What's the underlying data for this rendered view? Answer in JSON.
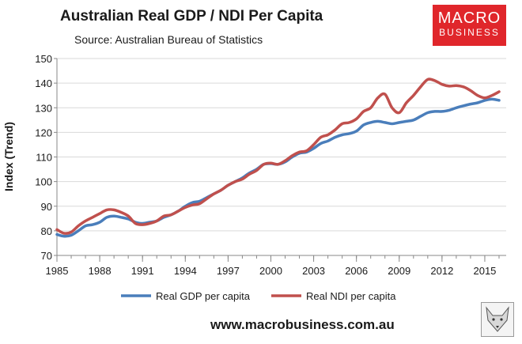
{
  "header": {
    "title": "Australian Real GDP / NDI Per Capita",
    "subtitle": "Source: Australian Bureau of Statistics"
  },
  "logo": {
    "line1": "MACRO",
    "line2": "BUSINESS"
  },
  "footer": {
    "website": "www.macrobusiness.com.au"
  },
  "icons": {
    "fox": "fox-head-logo-icon"
  },
  "chart_data": {
    "type": "line",
    "title": "Australian Real GDP / NDI Per Capita",
    "subtitle": "Source: Australian Bureau of Statistics",
    "xlabel": "",
    "ylabel": "Index (Trend)",
    "xlim": [
      1985,
      2016.5
    ],
    "ylim": [
      70,
      150
    ],
    "xticks": [
      1985,
      1988,
      1991,
      1994,
      1997,
      2000,
      2003,
      2006,
      2009,
      2012,
      2015
    ],
    "yticks": [
      70,
      80,
      90,
      100,
      110,
      120,
      130,
      140,
      150
    ],
    "grid": {
      "horizontal": true,
      "vertical": false
    },
    "legend_position": "bottom",
    "series": [
      {
        "name": "Real GDP per capita",
        "color": "#4a7ebb",
        "points": [
          [
            1985,
            78.5
          ],
          [
            1985.5,
            77.8
          ],
          [
            1986,
            78.2
          ],
          [
            1986.5,
            80
          ],
          [
            1987,
            82
          ],
          [
            1987.5,
            82.5
          ],
          [
            1988,
            83.5
          ],
          [
            1988.5,
            85.5
          ],
          [
            1989,
            86
          ],
          [
            1989.5,
            85.5
          ],
          [
            1990,
            84.8
          ],
          [
            1990.5,
            83.5
          ],
          [
            1991,
            83
          ],
          [
            1991.5,
            83.5
          ],
          [
            1992,
            84
          ],
          [
            1992.5,
            85.5
          ],
          [
            1993,
            86.5
          ],
          [
            1993.5,
            88
          ],
          [
            1994,
            90
          ],
          [
            1994.5,
            91.5
          ],
          [
            1995,
            92
          ],
          [
            1995.5,
            93.5
          ],
          [
            1996,
            95
          ],
          [
            1996.5,
            96.5
          ],
          [
            1997,
            98.5
          ],
          [
            1997.5,
            100
          ],
          [
            1998,
            101.5
          ],
          [
            1998.5,
            103.5
          ],
          [
            1999,
            105
          ],
          [
            1999.5,
            107
          ],
          [
            2000,
            107.3
          ],
          [
            2000.5,
            107
          ],
          [
            2001,
            108
          ],
          [
            2001.5,
            110
          ],
          [
            2002,
            111.5
          ],
          [
            2002.5,
            112
          ],
          [
            2003,
            113.5
          ],
          [
            2003.5,
            115.5
          ],
          [
            2004,
            116.5
          ],
          [
            2004.5,
            118
          ],
          [
            2005,
            119
          ],
          [
            2005.5,
            119.5
          ],
          [
            2006,
            120.5
          ],
          [
            2006.5,
            123
          ],
          [
            2007,
            124
          ],
          [
            2007.5,
            124.5
          ],
          [
            2008,
            124
          ],
          [
            2008.5,
            123.5
          ],
          [
            2009,
            124
          ],
          [
            2009.5,
            124.5
          ],
          [
            2010,
            125
          ],
          [
            2010.5,
            126.5
          ],
          [
            2011,
            128
          ],
          [
            2011.5,
            128.5
          ],
          [
            2012,
            128.5
          ],
          [
            2012.5,
            129
          ],
          [
            2013,
            130
          ],
          [
            2013.5,
            130.8
          ],
          [
            2014,
            131.5
          ],
          [
            2014.5,
            132
          ],
          [
            2015,
            133
          ],
          [
            2015.5,
            133.5
          ],
          [
            2016,
            133
          ]
        ]
      },
      {
        "name": "Real NDI per capita",
        "color": "#c0504d",
        "points": [
          [
            1985,
            80.5
          ],
          [
            1985.5,
            79
          ],
          [
            1986,
            79.5
          ],
          [
            1986.5,
            82
          ],
          [
            1987,
            84
          ],
          [
            1987.5,
            85.5
          ],
          [
            1988,
            87
          ],
          [
            1988.5,
            88.5
          ],
          [
            1989,
            88.5
          ],
          [
            1989.5,
            87.5
          ],
          [
            1990,
            86
          ],
          [
            1990.5,
            83
          ],
          [
            1991,
            82.5
          ],
          [
            1991.5,
            83
          ],
          [
            1992,
            84
          ],
          [
            1992.5,
            86
          ],
          [
            1993,
            86.5
          ],
          [
            1993.5,
            88
          ],
          [
            1994,
            89.5
          ],
          [
            1994.5,
            90.5
          ],
          [
            1995,
            91
          ],
          [
            1995.5,
            93
          ],
          [
            1996,
            95
          ],
          [
            1996.5,
            96.5
          ],
          [
            1997,
            98.5
          ],
          [
            1997.5,
            100
          ],
          [
            1998,
            101
          ],
          [
            1998.5,
            103
          ],
          [
            1999,
            104.5
          ],
          [
            1999.5,
            107
          ],
          [
            2000,
            107.5
          ],
          [
            2000.5,
            107
          ],
          [
            2001,
            108.5
          ],
          [
            2001.5,
            110.5
          ],
          [
            2002,
            112
          ],
          [
            2002.5,
            112.5
          ],
          [
            2003,
            115
          ],
          [
            2003.5,
            118
          ],
          [
            2004,
            119
          ],
          [
            2004.5,
            121
          ],
          [
            2005,
            123.5
          ],
          [
            2005.5,
            124
          ],
          [
            2006,
            125.5
          ],
          [
            2006.5,
            128.5
          ],
          [
            2007,
            130
          ],
          [
            2007.5,
            134
          ],
          [
            2008,
            135.5
          ],
          [
            2008.5,
            130
          ],
          [
            2009,
            128
          ],
          [
            2009.5,
            132
          ],
          [
            2010,
            135
          ],
          [
            2010.5,
            138.5
          ],
          [
            2011,
            141.5
          ],
          [
            2011.5,
            141
          ],
          [
            2012,
            139.5
          ],
          [
            2012.5,
            138.8
          ],
          [
            2013,
            139
          ],
          [
            2013.5,
            138.5
          ],
          [
            2014,
            137
          ],
          [
            2014.5,
            135
          ],
          [
            2015,
            134
          ],
          [
            2015.5,
            135
          ],
          [
            2016,
            136.5
          ]
        ]
      }
    ]
  }
}
